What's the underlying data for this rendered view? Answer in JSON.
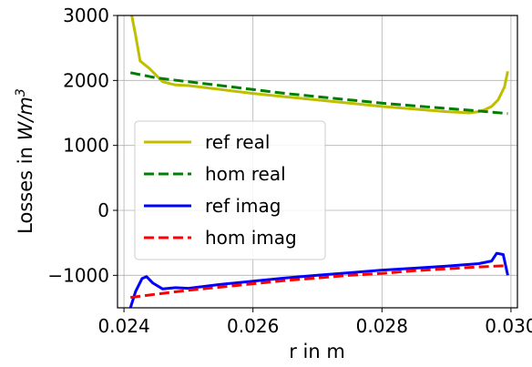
{
  "chart_data": {
    "type": "line",
    "xlabel": "r in m",
    "ylabel_main": "Losses in ",
    "ylabel_unit": "W/m",
    "ylabel_exponent": "3",
    "xlim": [
      0.0239,
      0.0301
    ],
    "ylim": [
      -1500,
      3000
    ],
    "grid": true,
    "legend_position": "center-left",
    "xticks": [
      {
        "value": 0.024,
        "label": "0.024"
      },
      {
        "value": 0.026,
        "label": "0.026"
      },
      {
        "value": 0.028,
        "label": "0.028"
      },
      {
        "value": 0.03,
        "label": "0.030"
      }
    ],
    "yticks": [
      {
        "value": 3000,
        "label": "3000"
      },
      {
        "value": 2000,
        "label": "2000"
      },
      {
        "value": 1000,
        "label": "1000"
      },
      {
        "value": 0,
        "label": "0"
      },
      {
        "value": -1000,
        "label": "−1000"
      }
    ],
    "series": [
      {
        "name": "ref real",
        "color": "#bfbf00",
        "dash": "solid",
        "x": [
          0.02412,
          0.02418,
          0.02425,
          0.0244,
          0.0246,
          0.0248,
          0.025,
          0.0255,
          0.026,
          0.0265,
          0.027,
          0.0275,
          0.028,
          0.0285,
          0.029,
          0.02935,
          0.0295,
          0.0296,
          0.0297,
          0.0298,
          0.0299,
          0.02995
        ],
        "y": [
          3000,
          2700,
          2300,
          2180,
          1980,
          1930,
          1920,
          1860,
          1800,
          1750,
          1700,
          1650,
          1600,
          1560,
          1520,
          1500,
          1520,
          1550,
          1600,
          1700,
          1900,
          2140
        ]
      },
      {
        "name": "hom real",
        "color": "#008000",
        "dash": "dashed",
        "x": [
          0.0241,
          0.0245,
          0.025,
          0.0255,
          0.026,
          0.0265,
          0.027,
          0.0275,
          0.028,
          0.0285,
          0.029,
          0.0295,
          0.02995
        ],
        "y": [
          2120,
          2040,
          1980,
          1920,
          1860,
          1800,
          1750,
          1700,
          1650,
          1610,
          1570,
          1530,
          1490
        ]
      },
      {
        "name": "ref imag",
        "color": "#0000ff",
        "dash": "solid",
        "x": [
          0.0241,
          0.02418,
          0.02428,
          0.02435,
          0.02445,
          0.0246,
          0.0248,
          0.025,
          0.0255,
          0.026,
          0.0265,
          0.027,
          0.0275,
          0.028,
          0.0285,
          0.029,
          0.0295,
          0.0297,
          0.02978,
          0.02988,
          0.02995
        ],
        "y": [
          -1500,
          -1250,
          -1050,
          -1020,
          -1120,
          -1210,
          -1190,
          -1200,
          -1140,
          -1090,
          -1040,
          -1000,
          -960,
          -920,
          -890,
          -860,
          -820,
          -780,
          -660,
          -680,
          -1000
        ]
      },
      {
        "name": "hom imag",
        "color": "#ff0000",
        "dash": "dashed",
        "x": [
          0.0241,
          0.0245,
          0.025,
          0.0255,
          0.026,
          0.0265,
          0.027,
          0.0275,
          0.028,
          0.0285,
          0.029,
          0.0295,
          0.02995
        ],
        "y": [
          -1340,
          -1290,
          -1230,
          -1180,
          -1130,
          -1080,
          -1040,
          -1000,
          -970,
          -930,
          -900,
          -870,
          -850
        ]
      }
    ]
  }
}
